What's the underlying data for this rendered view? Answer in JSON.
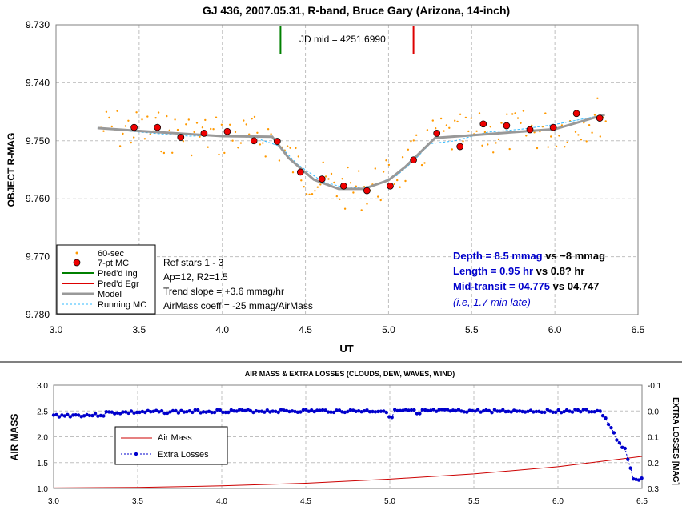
{
  "chart_data": [
    {
      "type": "scatter",
      "title": "GJ 436, 2007.05.31, R-band, Bruce Gary (Arizona, 14-inch)",
      "xlabel": "UT",
      "ylabel": "OBJECT R-MAG",
      "xlim": [
        3.0,
        6.5
      ],
      "ylim": [
        9.78,
        9.73
      ],
      "y_inverted": true,
      "x_ticks": [
        "3.0",
        "3.5",
        "4.0",
        "4.5",
        "5.0",
        "5.5",
        "6.0",
        "6.5"
      ],
      "y_ticks": [
        "9.730",
        "9.740",
        "9.750",
        "9.760",
        "9.770",
        "9.780"
      ],
      "grid": true,
      "legend_position": "bottom-left",
      "legend": [
        "60-sec",
        "7-pt MC",
        "Pred'd Ing",
        "Pred'd Egr",
        "Model",
        "Running MC"
      ],
      "jd_label": "JD mid = 4251.6990",
      "predicted_ingress_x": 4.35,
      "predicted_egress_x": 5.15,
      "info_lines": [
        "Ref stars 1 - 3",
        "Ap=12, R2=1.5",
        "Trend slope = +3.6 mmag/hr",
        "AirMass coeff = -25 mmag/AirMass"
      ],
      "results": {
        "depth_a": "Depth = 8.5 mmag",
        "depth_b": " vs ~8 mmag",
        "length_a": "Length = 0.95 hr",
        "length_b": " vs 0.8? hr",
        "mid_a": "Mid-transit = 04.775",
        "mid_b": " vs 04.747",
        "late": "(i.e, 1.7 min late)"
      },
      "colors": {
        "raw": "#ff9900",
        "mc": "#ee0000",
        "ingress": "#008000",
        "egress": "#dd0000",
        "model": "#999999",
        "running": "#33bbff",
        "results": "#0000cc"
      },
      "series": [
        {
          "name": "7-pt MC",
          "x": [
            3.47,
            3.61,
            3.75,
            3.89,
            4.03,
            4.19,
            4.33,
            4.47,
            4.6,
            4.73,
            4.87,
            5.01,
            5.15,
            5.29,
            5.43,
            5.57,
            5.71,
            5.85,
            5.99,
            6.13,
            6.27
          ],
          "y": [
            9.7477,
            9.7477,
            9.7494,
            9.7487,
            9.7484,
            9.75,
            9.7501,
            9.7554,
            9.7566,
            9.7578,
            9.7586,
            9.7578,
            9.7533,
            9.7487,
            9.751,
            9.7471,
            9.7474,
            9.7481,
            9.7477,
            9.7453,
            9.7461
          ]
        },
        {
          "name": "Model",
          "x": [
            3.25,
            3.5,
            4.0,
            4.3,
            4.4,
            4.55,
            4.7,
            4.85,
            5.0,
            5.1,
            5.28,
            6.0,
            6.3
          ],
          "y": [
            9.7478,
            9.7483,
            9.7492,
            9.7493,
            9.753,
            9.7567,
            9.7583,
            9.7583,
            9.7568,
            9.7545,
            9.7495,
            9.748,
            9.7455
          ]
        },
        {
          "name": "Running MC",
          "x": [
            3.25,
            3.5,
            3.8,
            4.0,
            4.2,
            4.35,
            4.45,
            4.6,
            4.75,
            4.9,
            5.05,
            5.15,
            5.25,
            5.4,
            5.6,
            5.8,
            6.0,
            6.3
          ],
          "y": [
            9.7478,
            9.7485,
            9.7492,
            9.749,
            9.7495,
            9.751,
            9.754,
            9.757,
            9.7582,
            9.7578,
            9.756,
            9.7535,
            9.7505,
            9.75,
            9.7485,
            9.748,
            9.7472,
            9.7455
          ]
        }
      ]
    },
    {
      "type": "line",
      "title": "AIR MASS & EXTRA LOSSES (CLOUDS, DEW, WAVES, WIND)",
      "xlabel": "",
      "ylabel": "AIR MASS",
      "y2label": "EXTRA LOSSES [MAG]",
      "xlim": [
        3.0,
        6.5
      ],
      "ylim": [
        1.0,
        3.0
      ],
      "y2lim": [
        -0.1,
        0.3
      ],
      "x_ticks": [
        "3.0",
        "3.5",
        "4.0",
        "4.5",
        "5.0",
        "5.5",
        "6.0",
        "6.5"
      ],
      "y_ticks": [
        "1.0",
        "1.5",
        "2.0",
        "2.5",
        "3.0"
      ],
      "y2_ticks": [
        "-0.1",
        "0.0",
        "0.1",
        "0.2",
        "0.3"
      ],
      "grid": true,
      "legend_position": "left",
      "legend": [
        "Air Mass",
        "Extra Losses"
      ],
      "colors": {
        "airmass": "#cc0000",
        "losses": "#0000cc"
      },
      "series": [
        {
          "name": "Air Mass",
          "x": [
            3.0,
            3.5,
            4.0,
            4.5,
            5.0,
            5.5,
            6.0,
            6.5
          ],
          "y": [
            1.01,
            1.02,
            1.05,
            1.1,
            1.18,
            1.28,
            1.42,
            1.62
          ]
        },
        {
          "name": "Extra Losses",
          "x": [
            3.0,
            4.0,
            5.0,
            6.0,
            6.25,
            6.3,
            6.35,
            6.4,
            6.45,
            6.5
          ],
          "y": [
            0.01,
            0.0,
            0.0,
            0.0,
            0.0,
            0.05,
            0.11,
            0.15,
            0.27,
            0.26
          ]
        }
      ]
    }
  ]
}
